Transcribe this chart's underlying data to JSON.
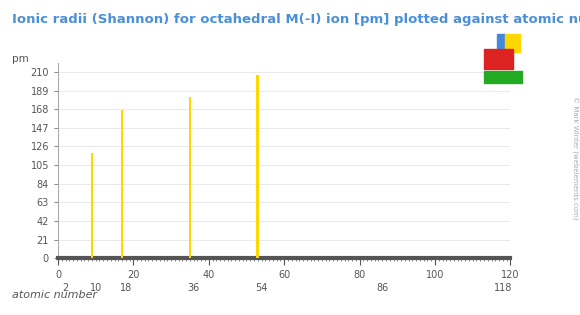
{
  "title": "Ionic radii (Shannon) for octahedral M(-I) ion [pm] plotted against atomic number",
  "ylabel": "pm",
  "xlabel": "atomic number",
  "bar_data": [
    {
      "atomic_number": 9,
      "value": 119
    },
    {
      "atomic_number": 17,
      "value": 167
    },
    {
      "atomic_number": 35,
      "value": 182
    },
    {
      "atomic_number": 53,
      "value": 206
    }
  ],
  "bar_color": "#FFD700",
  "bar_width": 0.7,
  "xlim": [
    0,
    120
  ],
  "ylim": [
    0,
    220
  ],
  "yticks": [
    0,
    21,
    42,
    63,
    84,
    105,
    126,
    147,
    168,
    189,
    210
  ],
  "xticks_major": [
    0,
    20,
    40,
    60,
    80,
    100,
    120
  ],
  "xticks_special": [
    2,
    10,
    18,
    36,
    54,
    86,
    118
  ],
  "background_color": "#ffffff",
  "title_color": "#4a90d9",
  "title_fontsize": 9.5,
  "axis_label_color": "#555555",
  "tick_label_color": "#555555",
  "watermark_text": "© Mark Winter (webelements.com)",
  "pt_colors": {
    "red": "#dd2222",
    "yellow": "#FFD700",
    "green": "#22aa22",
    "blue": "#4488dd"
  }
}
